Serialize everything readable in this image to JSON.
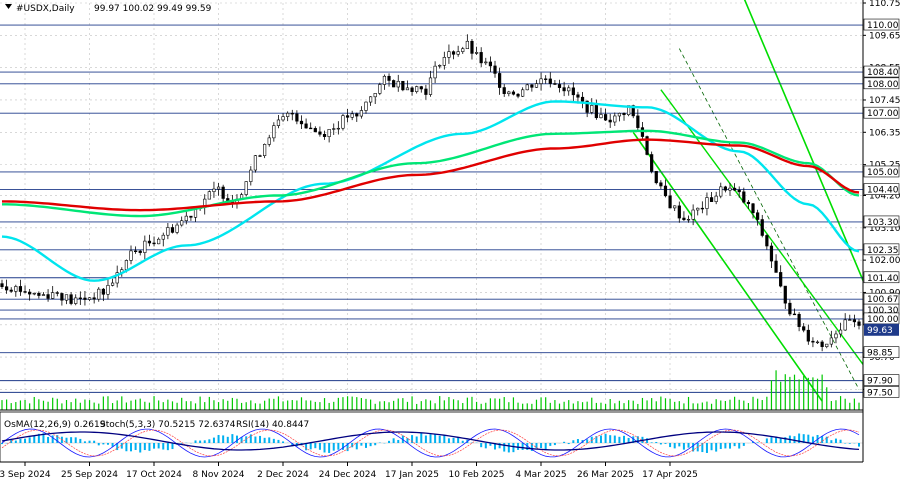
{
  "header": {
    "symbol": "#USDX,Daily",
    "ohlc": "99.97 100.02 99.49 99.59"
  },
  "indicator_header": {
    "osma": "OsMA(12,26,9) 0.2619",
    "stoch": "Stoch(5,3,3) 70.5215 72.6374",
    "rsi": "RSI(14) 40.8447"
  },
  "colors": {
    "background": "#ffffff",
    "grid": "#c0c0c0",
    "candle": "#000000",
    "ema_fast": "#00e5ee",
    "ema_mid": "#00e676",
    "ema_slow": "#e00000",
    "channel": "#00dd00",
    "channel_mid": "#006400",
    "osma_hist": "#00b0f0",
    "stoch_main": "#1a1aff",
    "stoch_signal": "#ff4040",
    "rsi": "#000080",
    "volume": "#00c800",
    "level_line": "#1e3a8a",
    "price_label": "#ffffff"
  },
  "chart_data": {
    "type": "candlestick",
    "title": "#USDX,Daily",
    "ylim": [
      96.9,
      110.75
    ],
    "y_ticks": [
      "110.75",
      "109.65",
      "108.55",
      "107.45",
      "106.35",
      "105.25",
      "104.20",
      "103.10",
      "102.00",
      "100.90",
      "99.80",
      "98.70",
      "97.60"
    ],
    "x_ticks": [
      "3 Sep 2024",
      "25 Sep 2024",
      "17 Oct 2024",
      "8 Nov 2024",
      "2 Dec 2024",
      "24 Dec 2024",
      "17 Jan 2025",
      "10 Feb 2025",
      "4 Mar 2025",
      "26 Mar 2025",
      "17 Apr 2025"
    ],
    "levels": [
      110.0,
      108.4,
      108.0,
      107.0,
      105.0,
      104.4,
      103.3,
      102.35,
      101.4,
      100.67,
      100.3,
      100.0,
      98.85,
      97.9,
      97.5
    ],
    "level_labels": [
      "110.00",
      "108.40",
      "108.00",
      "107.00",
      "105.00",
      "104.40",
      "103.30",
      "102.35",
      "101.40",
      "100.67",
      "100.30",
      "100.00",
      "98.85",
      "97.90",
      "97.50"
    ],
    "current_price": 99.63,
    "current_price_label": "99.63",
    "close_path": [
      [
        0,
        101.2
      ],
      [
        4,
        101.0
      ],
      [
        8,
        100.8
      ],
      [
        12,
        100.9
      ],
      [
        15,
        100.6
      ],
      [
        18,
        100.7
      ],
      [
        22,
        100.9
      ],
      [
        25,
        101.5
      ],
      [
        28,
        102.2
      ],
      [
        32,
        102.6
      ],
      [
        35,
        102.9
      ],
      [
        38,
        103.2
      ],
      [
        41,
        103.6
      ],
      [
        44,
        104.1
      ],
      [
        47,
        104.4
      ],
      [
        50,
        104.0
      ],
      [
        52,
        104.4
      ],
      [
        55,
        105.4
      ],
      [
        58,
        106.3
      ],
      [
        61,
        106.8
      ],
      [
        63,
        107.0
      ],
      [
        66,
        106.6
      ],
      [
        69,
        106.3
      ],
      [
        72,
        106.5
      ],
      [
        75,
        106.9
      ],
      [
        77,
        106.8
      ],
      [
        80,
        107.6
      ],
      [
        83,
        108.1
      ],
      [
        86,
        108.0
      ],
      [
        89,
        107.9
      ],
      [
        92,
        107.8
      ],
      [
        95,
        108.8
      ],
      [
        98,
        109.1
      ],
      [
        101,
        109.3
      ],
      [
        103,
        108.9
      ],
      [
        106,
        108.5
      ],
      [
        109,
        107.8
      ],
      [
        112,
        107.7
      ],
      [
        115,
        108.0
      ],
      [
        118,
        108.2
      ],
      [
        121,
        108.0
      ],
      [
        124,
        107.6
      ],
      [
        127,
        107.2
      ],
      [
        130,
        106.9
      ],
      [
        133,
        106.8
      ],
      [
        136,
        107.2
      ],
      [
        139,
        106.2
      ],
      [
        142,
        104.6
      ],
      [
        145,
        103.9
      ],
      [
        148,
        103.4
      ],
      [
        151,
        103.7
      ],
      [
        154,
        104.1
      ],
      [
        157,
        104.5
      ],
      [
        160,
        104.2
      ],
      [
        163,
        103.6
      ],
      [
        166,
        102.5
      ],
      [
        169,
        101.0
      ],
      [
        172,
        100.0
      ],
      [
        175,
        99.4
      ],
      [
        178,
        99.1
      ],
      [
        181,
        99.6
      ],
      [
        184,
        99.9
      ],
      [
        186,
        99.63
      ]
    ],
    "series": [
      {
        "name": "EMA fast",
        "values": [
          [
            0,
            102.8
          ],
          [
            20,
            101.3
          ],
          [
            40,
            102.5
          ],
          [
            70,
            104.6
          ],
          [
            100,
            106.3
          ],
          [
            120,
            107.4
          ],
          [
            140,
            107.2
          ],
          [
            160,
            105.7
          ],
          [
            175,
            103.9
          ],
          [
            186,
            102.3
          ]
        ]
      },
      {
        "name": "EMA mid",
        "values": [
          [
            0,
            103.9
          ],
          [
            30,
            103.5
          ],
          [
            60,
            104.2
          ],
          [
            90,
            105.3
          ],
          [
            120,
            106.3
          ],
          [
            140,
            106.4
          ],
          [
            160,
            106.0
          ],
          [
            175,
            105.3
          ],
          [
            186,
            104.2
          ]
        ]
      },
      {
        "name": "EMA slow",
        "values": [
          [
            0,
            104.0
          ],
          [
            30,
            103.7
          ],
          [
            60,
            104.0
          ],
          [
            90,
            104.9
          ],
          [
            120,
            105.8
          ],
          [
            140,
            106.1
          ],
          [
            160,
            105.9
          ],
          [
            175,
            105.2
          ],
          [
            186,
            104.3
          ]
        ]
      }
    ]
  }
}
